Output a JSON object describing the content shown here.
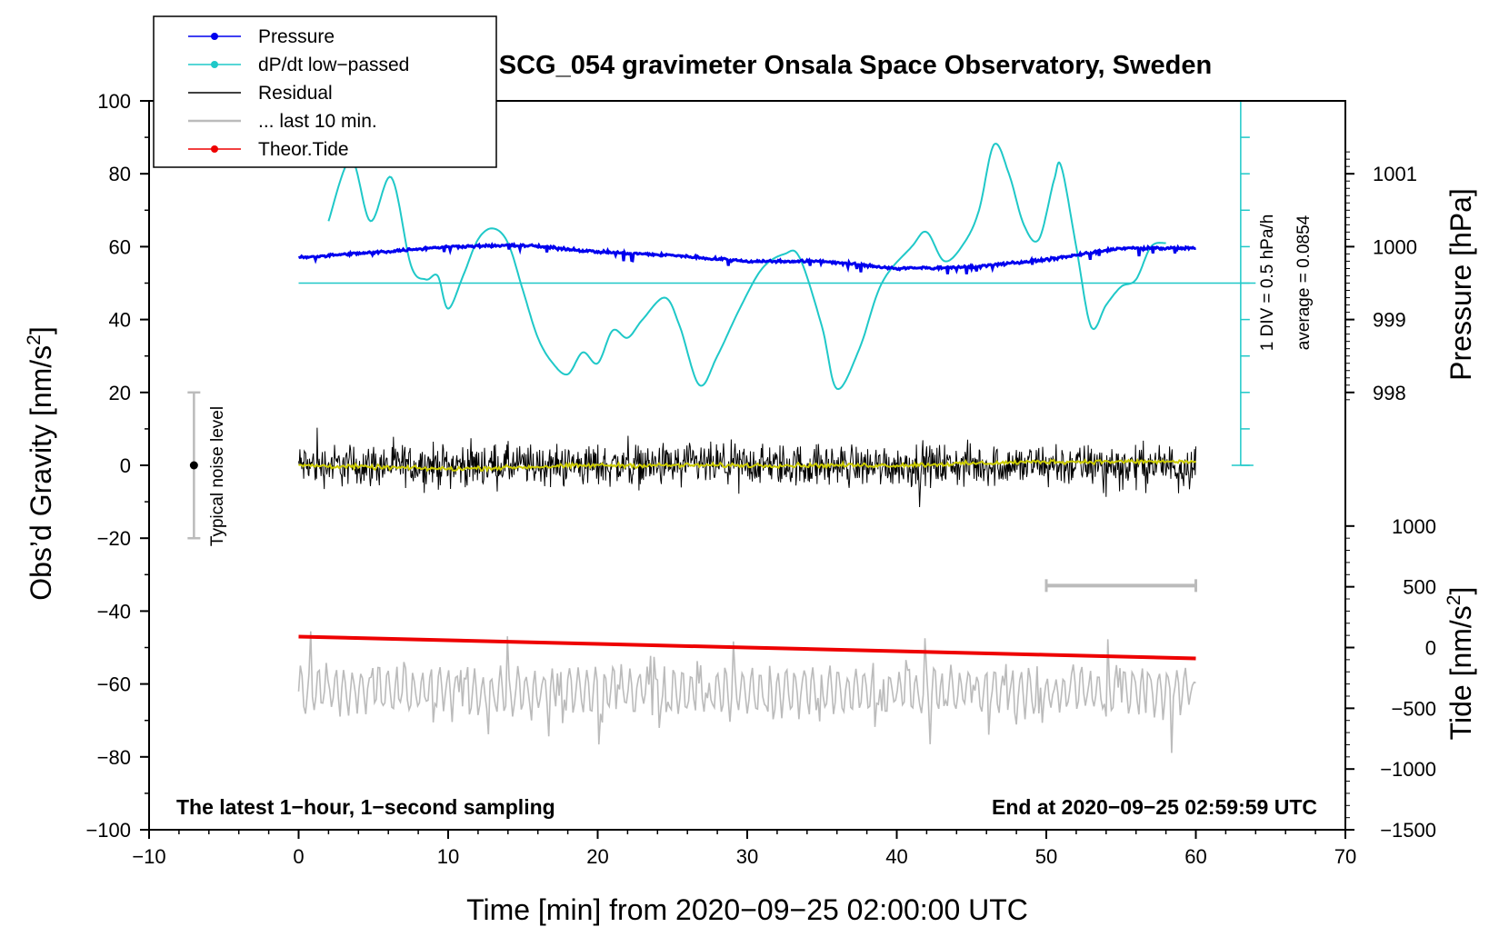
{
  "chart_data": {
    "type": "line",
    "title": "SCG_054 gravimeter Onsala Space Observatory, Sweden",
    "xlabel": "Time [min] from 2020−09−25 02:00:00 UTC",
    "ylabel_left": "Obs’d Gravity [nm/s²]",
    "ylabel_right_top": "Pressure [hPa]",
    "ylabel_right_bottom": "Tide [nm/s²]",
    "xlim": [
      -10,
      70
    ],
    "ylim": [
      -100,
      100
    ],
    "x_ticks": [
      -10,
      0,
      10,
      20,
      30,
      40,
      50,
      60,
      70
    ],
    "x_tick_labels": [
      "−10",
      "0",
      "10",
      "20",
      "30",
      "40",
      "50",
      "60",
      "70"
    ],
    "y_ticks": [
      100,
      80,
      60,
      40,
      20,
      0,
      -20,
      -40,
      -60,
      -80,
      -100
    ],
    "y_tick_labels": [
      "100",
      "80",
      "60",
      "40",
      "20",
      "0",
      "−20",
      "−40",
      "−60",
      "−80",
      "−100"
    ],
    "pressure_axis": {
      "ticks": [
        1001,
        1000,
        999,
        998
      ],
      "tick_labels": [
        "1001",
        "1000",
        "999",
        "998"
      ],
      "gravity_at_1000": 60,
      "gravity_per_hpa": 20
    },
    "tide_axis": {
      "ticks": [
        1000,
        500,
        0,
        -500,
        -1000,
        -1500
      ],
      "tick_labels": [
        "1000",
        "500",
        "0",
        "−500",
        "−1000",
        "−1500"
      ],
      "gravity_at_0": -50,
      "gravity_per_500": 16.67
    },
    "series": [
      {
        "name": "Pressure",
        "color": "#0000ee",
        "unit": "hPa",
        "x": [
          0,
          5,
          10,
          15,
          20,
          25,
          30,
          35,
          40,
          45,
          50,
          55,
          60
        ],
        "values": [
          999.85,
          999.92,
          1000.0,
          1000.02,
          999.93,
          999.88,
          999.8,
          999.8,
          999.7,
          999.72,
          999.82,
          999.98,
          999.98
        ]
      },
      {
        "name": "dP/dt low−passed",
        "color": "#1fc8c8",
        "x": [
          2,
          3.5,
          4.8,
          6.2,
          7.5,
          8.5,
          9.3,
          10.0,
          11.0,
          12.0,
          13.0,
          14.0,
          15.0,
          16.0,
          17.0,
          18.0,
          19.0,
          20.0,
          21.0,
          22.0,
          23.0,
          24.5,
          25.5,
          26.8,
          28.0,
          29.5,
          31.0,
          32.5,
          33.5,
          35.0,
          36.0,
          37.5,
          39.0,
          41.0,
          42.0,
          43.2,
          44.5,
          45.5,
          46.5,
          47.5,
          48.5,
          49.5,
          50.5,
          51.0,
          52.0,
          53.0,
          54.0,
          55.0,
          56.0,
          57.0,
          58.0
        ],
        "values": [
          67,
          84,
          67,
          79,
          55,
          51,
          52,
          43,
          52,
          62,
          65,
          61,
          48,
          35,
          28,
          25,
          31,
          28,
          37,
          35,
          40,
          46,
          38,
          22,
          30,
          43,
          54,
          58,
          57,
          38,
          21,
          32,
          50,
          60,
          64,
          56,
          61,
          70,
          88,
          80,
          66,
          62,
          78,
          82,
          60,
          38,
          44,
          49,
          51,
          60,
          61
        ]
      },
      {
        "name": "Residual",
        "color": "#000000",
        "x": [
          0,
          60
        ],
        "values": [
          0,
          0
        ],
        "envelope": [
          -21,
          20
        ]
      },
      {
        "name": "... last 10 min.",
        "color": "#bbbbbb",
        "x": [
          0,
          60
        ],
        "center": -62,
        "envelope": [
          -83,
          -43
        ]
      },
      {
        "name": "Theor.Tide",
        "color": "#ee0000",
        "x": [
          0,
          10,
          20,
          30,
          40,
          50,
          60
        ],
        "values": [
          -47,
          -48,
          -49,
          -50,
          -51,
          -52,
          -53
        ]
      },
      {
        "name": "residual smoothed",
        "color": "#cccc00",
        "x": [
          0,
          10,
          20,
          30,
          40,
          50,
          60
        ],
        "values": [
          0,
          -1,
          0,
          0,
          0,
          1,
          1
        ]
      }
    ],
    "noise_marker": {
      "x": -7,
      "value": 0,
      "range": [
        -20,
        20
      ],
      "label": "Typical noise level"
    },
    "last_10min_bracket": {
      "x_range": [
        50,
        60
      ],
      "value": -33
    },
    "reference_line": {
      "value": 50,
      "x_range": [
        0,
        64
      ]
    },
    "div_scale": {
      "x": 63,
      "value_range": [
        0,
        100
      ],
      "div": 10,
      "label": "1 DIV = 0.5 hPa/h",
      "average_label": "average = 0.0854"
    },
    "annotation_left": "The latest 1−hour, 1−second sampling",
    "annotation_right": "End at 2020−09−25 02:59:59 UTC",
    "legend": [
      {
        "label": "Pressure",
        "color": "#0000ee",
        "marker": true
      },
      {
        "label": "dP/dt low−passed",
        "color": "#1fc8c8",
        "marker": true
      },
      {
        "label": "Residual",
        "color": "#000000",
        "marker": false
      },
      {
        "label": "... last 10 min.",
        "color": "#bbbbbb",
        "marker": false
      },
      {
        "label": "Theor.Tide",
        "color": "#ee0000",
        "marker": true
      }
    ]
  }
}
